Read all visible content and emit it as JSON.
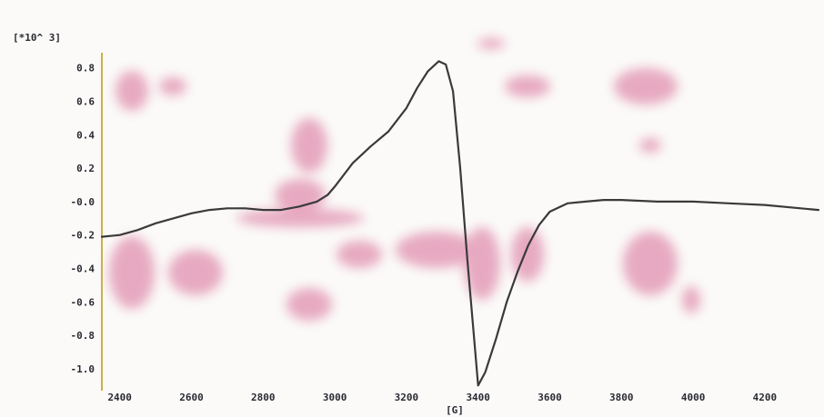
{
  "chart_data": {
    "type": "line",
    "title": "",
    "xlabel": "[G]",
    "ylabel": "[*10^ 3]",
    "xlim": [
      2350,
      4350
    ],
    "ylim": [
      -1.12,
      0.88
    ],
    "x_ticks": [
      2400,
      2600,
      2800,
      3000,
      3200,
      3400,
      3600,
      3800,
      4000,
      4200
    ],
    "y_ticks": [
      0.8,
      0.6,
      0.4,
      0.2,
      0.0,
      -0.2,
      -0.4,
      -0.6,
      -0.8,
      -1.0
    ],
    "x_tick_labels": [
      "2400",
      "2600",
      "2800",
      "3000",
      "3200",
      "3400",
      "3600",
      "3800",
      "4000",
      "4200"
    ],
    "y_tick_labels": [
      "0.8",
      "0.6",
      "0.4",
      "0.2",
      "-0.0",
      "-0.2",
      "-0.4",
      "-0.6",
      "-0.8",
      "-1.0"
    ],
    "grid": false,
    "line_color": "#3a3a3a",
    "background_noise_color": "#c2185b",
    "series": [
      {
        "x": [
          2350,
          2400,
          2450,
          2500,
          2550,
          2600,
          2650,
          2700,
          2750,
          2800,
          2850,
          2900,
          2950,
          2980,
          3000,
          3050,
          3100,
          3150,
          3200,
          3230,
          3260,
          3290,
          3310,
          3330,
          3350,
          3370,
          3390,
          3400,
          3420,
          3450,
          3480,
          3510,
          3540,
          3570,
          3600,
          3650,
          3700,
          3750,
          3800,
          3900,
          4000,
          4100,
          4200,
          4300,
          4350
        ],
        "y": [
          -0.21,
          -0.2,
          -0.17,
          -0.13,
          -0.1,
          -0.07,
          -0.05,
          -0.04,
          -0.04,
          -0.05,
          -0.05,
          -0.03,
          0.0,
          0.04,
          0.09,
          0.23,
          0.33,
          0.42,
          0.56,
          0.68,
          0.78,
          0.84,
          0.82,
          0.66,
          0.2,
          -0.35,
          -0.85,
          -1.1,
          -1.02,
          -0.82,
          -0.6,
          -0.42,
          -0.26,
          -0.14,
          -0.06,
          -0.01,
          0.0,
          0.01,
          0.01,
          0.0,
          0.0,
          -0.01,
          -0.02,
          -0.04,
          -0.05
        ]
      }
    ]
  }
}
